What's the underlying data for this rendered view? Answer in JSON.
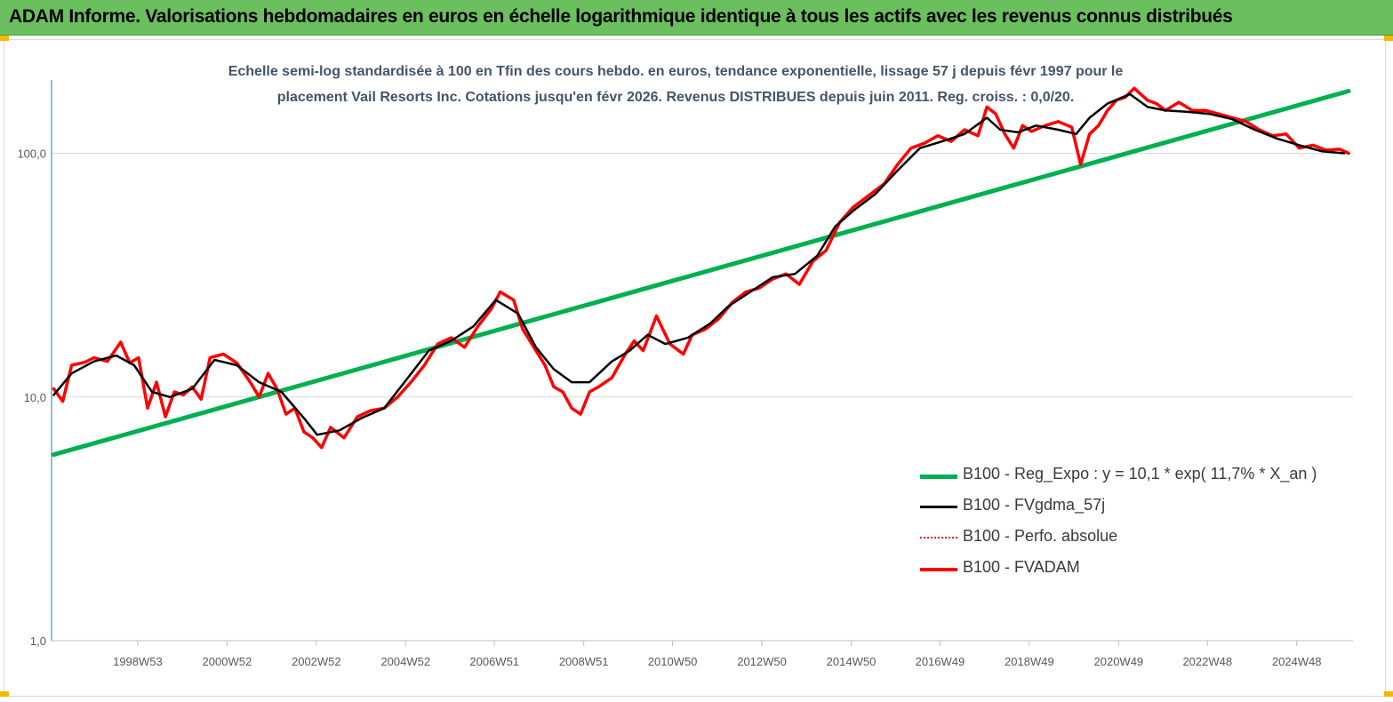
{
  "banner": {
    "title": "ADAM Informe. Valorisations hebdomadaires en euros en échelle logarithmique identique à tous les actifs avec les revenus connus distribués",
    "color": "#6bbf5f"
  },
  "chart_data": {
    "type": "line",
    "title_line1": "Echelle semi-log standardisée à 100 en Tfin des cours hebdo. en euros, tendance exponentielle, lissage 57 j depuis févr 1997 pour le",
    "title_line2": "placement Vail Resorts Inc. Cotations jusqu'en févr 2026. Revenus DISTRIBUES depuis juin 2011. Reg. croiss. : 0,0/20.",
    "y_scale": "log",
    "ylim": [
      1,
      200
    ],
    "xlim": [
      1997.05,
      2026.2
    ],
    "yticks": [
      {
        "value": 1,
        "label": "1,0"
      },
      {
        "value": 10,
        "label": "10,0"
      },
      {
        "value": 100,
        "label": "100,0"
      }
    ],
    "xticks": [
      {
        "value": 1998.98,
        "label": "1998W53"
      },
      {
        "value": 2000.98,
        "label": "2000W52"
      },
      {
        "value": 2002.98,
        "label": "2002W52"
      },
      {
        "value": 2004.98,
        "label": "2004W52"
      },
      {
        "value": 2006.97,
        "label": "2006W51"
      },
      {
        "value": 2008.97,
        "label": "2008W51"
      },
      {
        "value": 2010.96,
        "label": "2010W50"
      },
      {
        "value": 2012.96,
        "label": "2012W50"
      },
      {
        "value": 2014.96,
        "label": "2014W50"
      },
      {
        "value": 2016.95,
        "label": "2016W49"
      },
      {
        "value": 2018.95,
        "label": "2018W49"
      },
      {
        "value": 2020.95,
        "label": "2020W49"
      },
      {
        "value": 2022.94,
        "label": "2022W48"
      },
      {
        "value": 2024.94,
        "label": "2024W48"
      }
    ],
    "grid": "horizontal",
    "legend_position": "bottom-right",
    "series": [
      {
        "name": "B100 - Reg_Expo : y = 10,1 * exp( 11,7% *  X_an )",
        "color": "#00b050",
        "style": "solid",
        "x": [
          1997.1,
          2026.1
        ],
        "y": [
          5.8,
          180
        ]
      },
      {
        "name": "B100 - FVgdma_57j",
        "color": "#000000",
        "style": "solid",
        "x": [
          1997.1,
          1997.5,
          1998.0,
          1998.5,
          1998.9,
          1999.3,
          1999.7,
          2000.2,
          2000.7,
          2001.2,
          2001.7,
          2002.2,
          2002.7,
          2003.0,
          2003.5,
          2004.0,
          2004.5,
          2005.0,
          2005.5,
          2006.0,
          2006.5,
          2007.0,
          2007.5,
          2007.9,
          2008.3,
          2008.7,
          2009.1,
          2009.6,
          2010.0,
          2010.4,
          2010.8,
          2011.3,
          2011.8,
          2012.2,
          2012.7,
          2013.2,
          2013.7,
          2014.2,
          2014.6,
          2015.0,
          2015.5,
          2016.0,
          2016.5,
          2017.0,
          2017.5,
          2018.0,
          2018.3,
          2018.7,
          2019.1,
          2019.6,
          2020.0,
          2020.3,
          2020.7,
          2021.2,
          2021.6,
          2022.0,
          2022.5,
          2023.0,
          2023.5,
          2024.0,
          2024.5,
          2025.0,
          2025.5,
          2026.0
        ],
        "y": [
          10.2,
          12.5,
          14.0,
          14.8,
          13.5,
          10.5,
          10.0,
          10.8,
          14.2,
          13.5,
          11.5,
          10.5,
          8.2,
          7.0,
          7.3,
          8.2,
          9.0,
          11.8,
          15.5,
          17.0,
          19.5,
          25.0,
          22.0,
          16.0,
          13.0,
          11.5,
          11.5,
          14.0,
          15.5,
          18.0,
          16.5,
          17.5,
          20.0,
          23.5,
          27.0,
          31.0,
          32.0,
          38.0,
          50.0,
          58.0,
          68.0,
          85.0,
          105.0,
          112.0,
          120.0,
          140.0,
          125.0,
          122.0,
          130.0,
          125.0,
          120.0,
          140.0,
          160.0,
          175.0,
          155.0,
          150.0,
          148.0,
          145.0,
          138.0,
          125.0,
          115.0,
          108.0,
          102.0,
          100.0
        ]
      },
      {
        "name": "B100 - Perfo. absolue",
        "color": "#ff0000",
        "style": "dotted"
      },
      {
        "name": "B100 - FVADAM",
        "color": "#ff0000",
        "style": "solid",
        "x": [
          1997.1,
          1997.3,
          1997.5,
          1997.8,
          1998.0,
          1998.3,
          1998.6,
          1998.8,
          1999.0,
          1999.2,
          1999.4,
          1999.6,
          1999.8,
          2000.0,
          2000.2,
          2000.4,
          2000.6,
          2000.9,
          2001.2,
          2001.5,
          2001.7,
          2001.9,
          2002.1,
          2002.3,
          2002.5,
          2002.7,
          2002.9,
          2003.1,
          2003.3,
          2003.6,
          2003.9,
          2004.2,
          2004.5,
          2004.8,
          2005.1,
          2005.4,
          2005.7,
          2006.0,
          2006.3,
          2006.6,
          2006.9,
          2007.1,
          2007.4,
          2007.6,
          2007.9,
          2008.1,
          2008.3,
          2008.5,
          2008.7,
          2008.9,
          2009.1,
          2009.3,
          2009.6,
          2009.9,
          2010.1,
          2010.3,
          2010.6,
          2010.9,
          2011.2,
          2011.4,
          2011.7,
          2012.0,
          2012.3,
          2012.6,
          2012.9,
          2013.2,
          2013.5,
          2013.8,
          2014.1,
          2014.4,
          2014.7,
          2015.0,
          2015.3,
          2015.7,
          2016.0,
          2016.3,
          2016.6,
          2016.9,
          2017.2,
          2017.5,
          2017.8,
          2018.0,
          2018.2,
          2018.4,
          2018.6,
          2018.8,
          2019.0,
          2019.3,
          2019.6,
          2019.9,
          2020.1,
          2020.3,
          2020.5,
          2020.7,
          2020.9,
          2021.1,
          2021.3,
          2021.6,
          2021.8,
          2022.0,
          2022.3,
          2022.6,
          2022.9,
          2023.2,
          2023.5,
          2023.8,
          2024.1,
          2024.4,
          2024.7,
          2025.0,
          2025.3,
          2025.6,
          2025.9,
          2026.1
        ],
        "y": [
          10.8,
          9.6,
          13.5,
          13.9,
          14.5,
          14.0,
          16.8,
          13.8,
          14.5,
          9.0,
          11.5,
          8.3,
          10.5,
          10.2,
          11.0,
          9.8,
          14.5,
          15.0,
          13.8,
          11.5,
          10.0,
          12.5,
          10.8,
          8.5,
          9.0,
          7.2,
          6.8,
          6.2,
          7.5,
          6.8,
          8.3,
          8.8,
          9.0,
          10.0,
          11.5,
          13.5,
          16.5,
          17.5,
          16.0,
          19.5,
          23.0,
          27.0,
          25.0,
          19.0,
          15.5,
          13.5,
          11.0,
          10.5,
          9.0,
          8.5,
          10.5,
          11.0,
          12.0,
          15.0,
          17.0,
          15.5,
          21.5,
          16.5,
          15.0,
          18.0,
          19.0,
          21.0,
          24.5,
          27.0,
          28.0,
          30.5,
          32.0,
          29.0,
          36.0,
          40.0,
          52.0,
          60.0,
          66.0,
          75.0,
          90.0,
          105.0,
          110.0,
          118.0,
          112.0,
          125.0,
          118.0,
          155.0,
          145.0,
          120.0,
          105.0,
          130.0,
          123.0,
          130.0,
          135.0,
          128.0,
          90.0,
          120.0,
          130.0,
          150.0,
          165.0,
          170.0,
          185.0,
          165.0,
          160.0,
          150.0,
          162.0,
          150.0,
          150.0,
          145.0,
          140.0,
          135.0,
          125.0,
          118.0,
          120.0,
          105.0,
          108.0,
          103.0,
          104.0,
          100.0
        ]
      }
    ]
  }
}
